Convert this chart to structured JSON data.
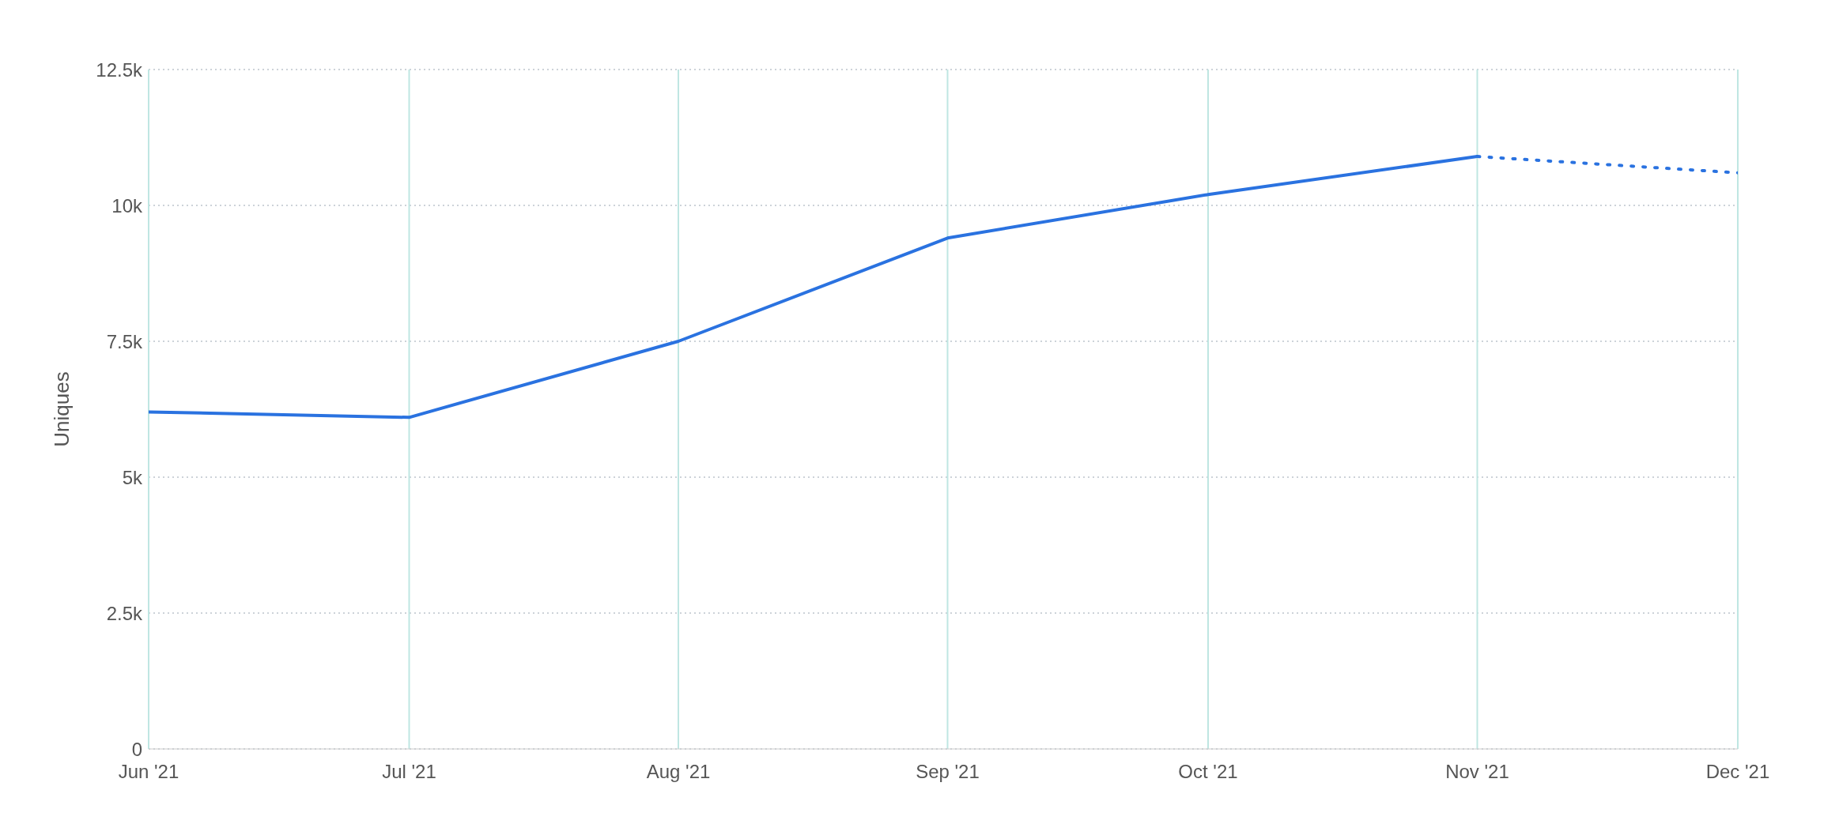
{
  "chart_data": {
    "type": "line",
    "ylabel": "Uniques",
    "grid": true,
    "xlim": [
      "2021-06-01",
      "2021-12-01"
    ],
    "xticks": [
      {
        "value": "2021-06-01",
        "label": "Jun '21"
      },
      {
        "value": "2021-07-01",
        "label": "Jul '21"
      },
      {
        "value": "2021-08-01",
        "label": "Aug '21"
      },
      {
        "value": "2021-09-01",
        "label": "Sep '21"
      },
      {
        "value": "2021-10-01",
        "label": "Oct '21"
      },
      {
        "value": "2021-11-01",
        "label": "Nov '21"
      },
      {
        "value": "2021-12-01",
        "label": "Dec '21"
      }
    ],
    "ylim": [
      0,
      12500
    ],
    "yticks": [
      0,
      {
        "value": 2500,
        "label": "2.5k"
      },
      {
        "value": 5000,
        "label": "5k"
      },
      {
        "value": 7500,
        "label": "7.5k"
      },
      {
        "value": 10000,
        "label": "10k"
      },
      {
        "value": 12500,
        "label": "12.5k"
      }
    ],
    "series": [
      {
        "color": "#2a72e0",
        "line_style": "solid",
        "x": [
          "2021-06-01",
          "2021-07-01",
          "2021-08-01",
          "2021-09-01",
          "2021-10-01",
          "2021-11-01"
        ],
        "values": [
          6200,
          6100,
          7500,
          9400,
          10200,
          10900
        ]
      },
      {
        "color": "#2a72e0",
        "line_style": "dotted",
        "x": [
          "2021-11-01",
          "2021-12-01"
        ],
        "values": [
          10900,
          10600
        ]
      }
    ]
  }
}
